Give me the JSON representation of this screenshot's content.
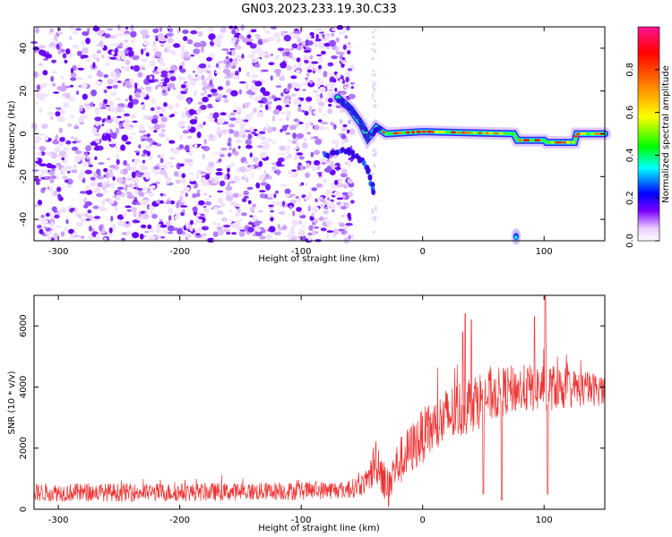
{
  "title": "GN03.2023.233.19.30.C33",
  "chart_data": [
    {
      "type": "heatmap",
      "xlabel": "Height of straight line (km)",
      "ylabel": "Frequency (Hz)",
      "xlim": [
        -320,
        150
      ],
      "ylim": [
        -50,
        50
      ],
      "xticks": [
        -300,
        -200,
        -100,
        0,
        100
      ],
      "yticks": [
        -40,
        -20,
        0,
        20,
        40
      ],
      "colorbar": {
        "label": "Normalized spectral amplitude",
        "range": [
          0.0,
          1.0
        ],
        "ticks": [
          0.0,
          0.2,
          0.4,
          0.6,
          0.8
        ]
      },
      "features": {
        "noise_region_x": [
          -320,
          -65
        ],
        "carrier_track": [
          {
            "x": -70,
            "y": 17
          },
          {
            "x": -60,
            "y": 12
          },
          {
            "x": -50,
            "y": 4
          },
          {
            "x": -45,
            "y": -2
          },
          {
            "x": -38,
            "y": 3
          },
          {
            "x": -30,
            "y": 0
          },
          {
            "x": 0,
            "y": 1
          },
          {
            "x": 75,
            "y": 0
          },
          {
            "x": 78,
            "y": -3
          },
          {
            "x": 100,
            "y": -3
          },
          {
            "x": 102,
            "y": -4
          },
          {
            "x": 125,
            "y": -4
          },
          {
            "x": 127,
            "y": 0
          },
          {
            "x": 150,
            "y": 0
          }
        ],
        "secondary_track": [
          {
            "x": -80,
            "y": -10
          },
          {
            "x": -60,
            "y": -8
          },
          {
            "x": -45,
            "y": -15
          },
          {
            "x": -40,
            "y": -28
          }
        ],
        "blip": {
          "x": 77,
          "y": -48
        }
      }
    },
    {
      "type": "line",
      "xlabel": "Height of straight line (km)",
      "ylabel": "SNR (10 * v/v)",
      "xlim": [
        -320,
        150
      ],
      "ylim": [
        0,
        7000
      ],
      "xticks": [
        -300,
        -200,
        -100,
        0,
        100
      ],
      "yticks": [
        0,
        2000,
        4000,
        6000
      ],
      "series": [
        {
          "color": "#ee3333",
          "envelope": [
            {
              "x": -320,
              "mean": 550,
              "spread": 300
            },
            {
              "x": -200,
              "mean": 550,
              "spread": 300
            },
            {
              "x": -100,
              "mean": 600,
              "spread": 300
            },
            {
              "x": -60,
              "mean": 650,
              "spread": 300
            },
            {
              "x": -45,
              "mean": 900,
              "spread": 400
            },
            {
              "x": -38,
              "mean": 1700,
              "spread": 900
            },
            {
              "x": -30,
              "mean": 800,
              "spread": 600
            },
            {
              "x": -20,
              "mean": 1500,
              "spread": 800
            },
            {
              "x": 0,
              "mean": 2400,
              "spread": 900
            },
            {
              "x": 20,
              "mean": 3000,
              "spread": 1000
            },
            {
              "x": 40,
              "mean": 3500,
              "spread": 1000
            },
            {
              "x": 70,
              "mean": 3900,
              "spread": 800
            },
            {
              "x": 100,
              "mean": 4000,
              "spread": 800
            },
            {
              "x": 150,
              "mean": 3900,
              "spread": 500
            }
          ],
          "peaks": [
            {
              "x": 35,
              "y": 6400
            },
            {
              "x": 40,
              "y": 6200
            },
            {
              "x": 92,
              "y": 6300
            },
            {
              "x": 101,
              "y": 7000
            },
            {
              "x": 33,
              "y": 5800
            }
          ],
          "dips": [
            {
              "x": 50,
              "y": 500
            },
            {
              "x": 65,
              "y": 300
            },
            {
              "x": 103,
              "y": 500
            },
            {
              "x": -28,
              "y": 100
            }
          ]
        }
      ]
    }
  ]
}
